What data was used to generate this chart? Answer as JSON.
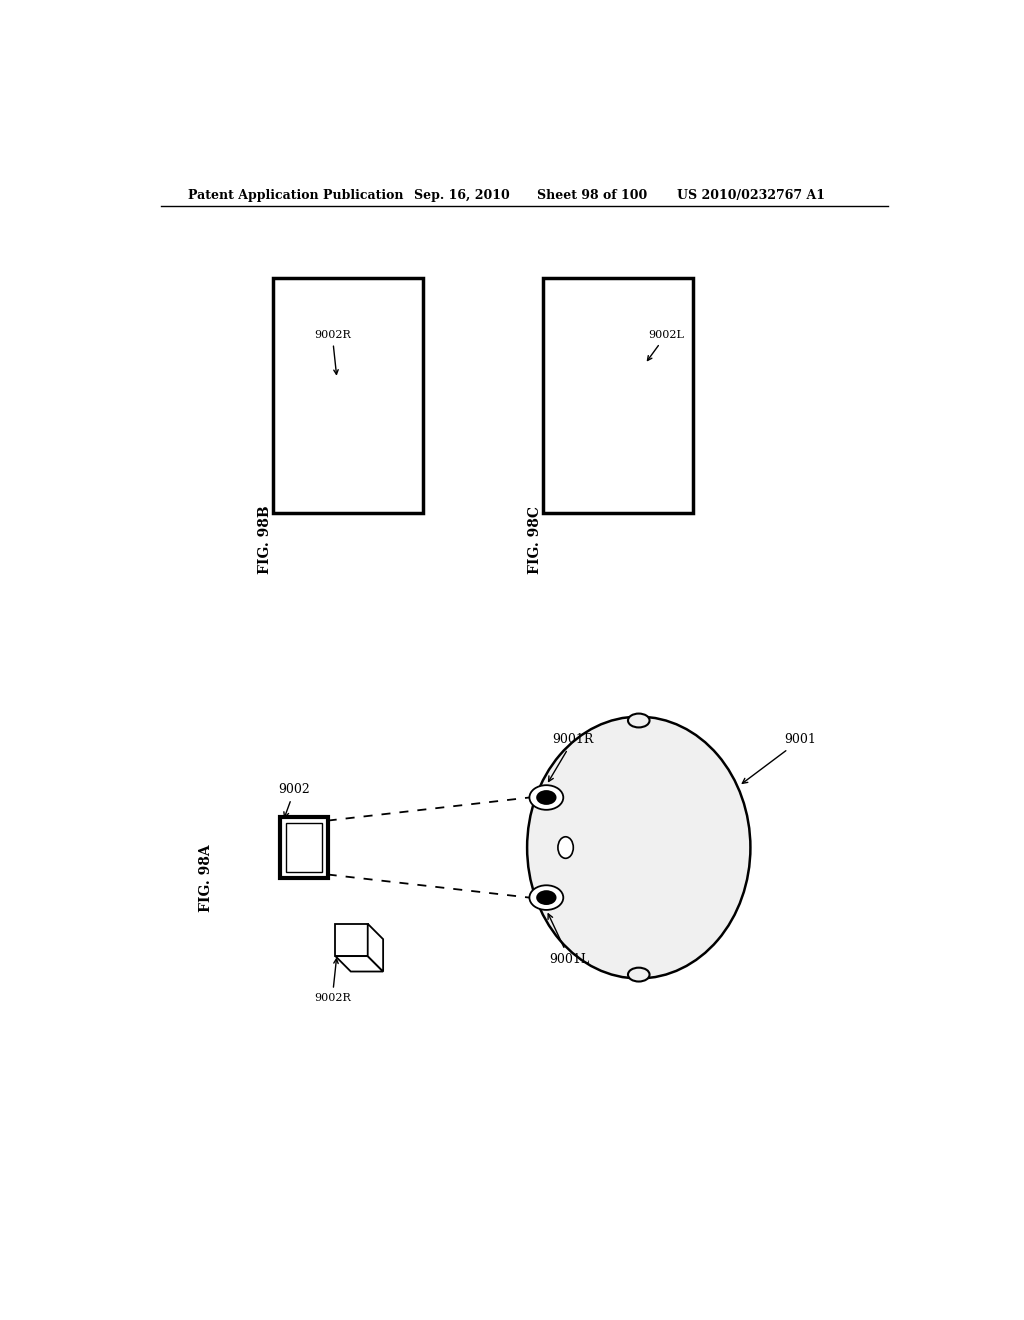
{
  "bg_color": "#ffffff",
  "line_color": "#000000",
  "header_text": "Patent Application Publication",
  "header_date": "Sep. 16, 2010",
  "header_sheet": "Sheet 98 of 100",
  "header_patent": "US 2010/0232767 A1",
  "fig_98b_label": "FIG. 98B",
  "fig_98c_label": "FIG. 98C",
  "fig_98a_label": "FIG. 98A",
  "label_9002R": "9002R",
  "label_9002L": "9002L",
  "label_9002": "9002",
  "label_9001R": "9001R",
  "label_9001L": "9001L",
  "label_9001": "9001"
}
